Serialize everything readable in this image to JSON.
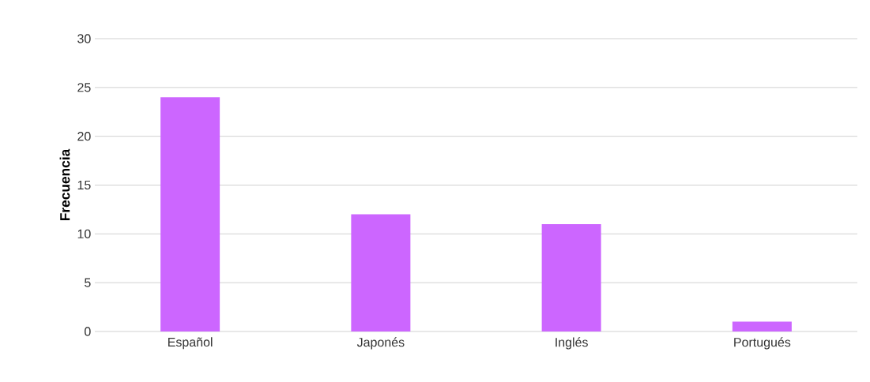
{
  "chart_data": {
    "type": "bar",
    "ylabel": "Frecuencia",
    "categories": [
      "Español",
      "Japonés",
      "Inglés",
      "Portugués"
    ],
    "values": [
      24,
      12,
      11,
      1
    ],
    "color": "#cc66ff",
    "ylim": [
      0,
      30
    ],
    "yticks": [
      0,
      5,
      10,
      15,
      20,
      25,
      30
    ],
    "grid": "y"
  }
}
